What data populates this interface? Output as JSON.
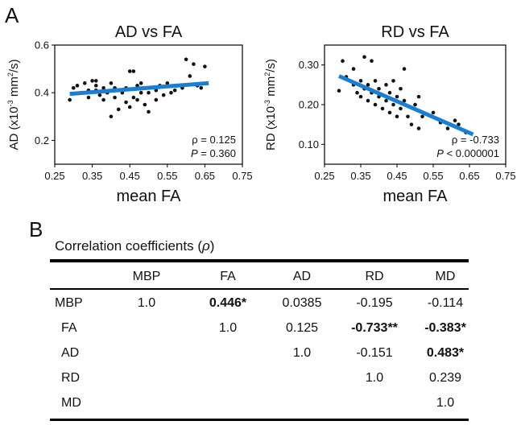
{
  "panel_a": "A",
  "panel_b": "B",
  "chart_data": [
    {
      "type": "scatter",
      "title": "AD vs FA",
      "xlabel": "mean FA",
      "ylabel_base": "AD (x10",
      "ylabel_sup1": "-3",
      "ylabel_mid": " mm",
      "ylabel_sup2": "2",
      "ylabel_end": "/s)",
      "xlim": [
        0.25,
        0.75
      ],
      "ylim": [
        0.1,
        0.6
      ],
      "xticks": [
        "0.25",
        "0.35",
        "0.45",
        "0.55",
        "0.65",
        "0.75"
      ],
      "xtick_values": [
        0.25,
        0.35,
        0.45,
        0.55,
        0.65,
        0.75
      ],
      "yticks": [
        "0.2",
        "0.4",
        "0.6"
      ],
      "ytick_values": [
        0.2,
        0.4,
        0.6
      ],
      "stat_rho": "ρ = 0.125",
      "stat_p_label": "P",
      "stat_p_value": " = 0.360",
      "fit_line": {
        "x": [
          0.29,
          0.66
        ],
        "y": [
          0.395,
          0.44
        ]
      },
      "points": [
        [
          0.29,
          0.37
        ],
        [
          0.3,
          0.42
        ],
        [
          0.31,
          0.43
        ],
        [
          0.32,
          0.4
        ],
        [
          0.33,
          0.44
        ],
        [
          0.34,
          0.41
        ],
        [
          0.34,
          0.38
        ],
        [
          0.35,
          0.45
        ],
        [
          0.36,
          0.41
        ],
        [
          0.36,
          0.43
        ],
        [
          0.37,
          0.39
        ],
        [
          0.38,
          0.42
        ],
        [
          0.38,
          0.37
        ],
        [
          0.39,
          0.4
        ],
        [
          0.4,
          0.44
        ],
        [
          0.4,
          0.3
        ],
        [
          0.41,
          0.42
        ],
        [
          0.41,
          0.38
        ],
        [
          0.42,
          0.33
        ],
        [
          0.43,
          0.4
        ],
        [
          0.44,
          0.36
        ],
        [
          0.44,
          0.42
        ],
        [
          0.45,
          0.49
        ],
        [
          0.45,
          0.34
        ],
        [
          0.46,
          0.49
        ],
        [
          0.46,
          0.38
        ],
        [
          0.47,
          0.43
        ],
        [
          0.47,
          0.37
        ],
        [
          0.48,
          0.4
        ],
        [
          0.48,
          0.44
        ],
        [
          0.49,
          0.35
        ],
        [
          0.5,
          0.4
        ],
        [
          0.5,
          0.32
        ],
        [
          0.52,
          0.41
        ],
        [
          0.53,
          0.43
        ],
        [
          0.54,
          0.39
        ],
        [
          0.55,
          0.44
        ],
        [
          0.56,
          0.4
        ],
        [
          0.57,
          0.41
        ],
        [
          0.59,
          0.42
        ],
        [
          0.6,
          0.54
        ],
        [
          0.61,
          0.47
        ],
        [
          0.62,
          0.52
        ],
        [
          0.63,
          0.43
        ],
        [
          0.64,
          0.42
        ],
        [
          0.65,
          0.51
        ],
        [
          0.36,
          0.45
        ],
        [
          0.52,
          0.37
        ]
      ]
    },
    {
      "type": "scatter",
      "title": "RD vs FA",
      "xlabel": "mean FA",
      "ylabel_base": "RD (x10",
      "ylabel_sup1": "-3",
      "ylabel_mid": " mm",
      "ylabel_sup2": "2",
      "ylabel_end": "/s)",
      "xlim": [
        0.25,
        0.75
      ],
      "ylim": [
        0.05,
        0.35
      ],
      "xticks": [
        "0.25",
        "0.35",
        "0.45",
        "0.55",
        "0.65",
        "0.75"
      ],
      "xtick_values": [
        0.25,
        0.35,
        0.45,
        0.55,
        0.65,
        0.75
      ],
      "yticks": [
        "0.10",
        "0.20",
        "0.30"
      ],
      "ytick_values": [
        0.1,
        0.2,
        0.3
      ],
      "stat_rho": "ρ = -0.733",
      "stat_p_label": "P",
      "stat_p_value": " < 0.000001",
      "fit_line": {
        "x": [
          0.29,
          0.66
        ],
        "y": [
          0.272,
          0.125
        ]
      },
      "points": [
        [
          0.29,
          0.235
        ],
        [
          0.3,
          0.31
        ],
        [
          0.31,
          0.27
        ],
        [
          0.32,
          0.26
        ],
        [
          0.33,
          0.29
        ],
        [
          0.33,
          0.25
        ],
        [
          0.34,
          0.23
        ],
        [
          0.35,
          0.26
        ],
        [
          0.35,
          0.22
        ],
        [
          0.36,
          0.32
        ],
        [
          0.36,
          0.24
        ],
        [
          0.37,
          0.25
        ],
        [
          0.37,
          0.21
        ],
        [
          0.38,
          0.31
        ],
        [
          0.38,
          0.23
        ],
        [
          0.39,
          0.26
        ],
        [
          0.39,
          0.2
        ],
        [
          0.4,
          0.24
        ],
        [
          0.4,
          0.22
        ],
        [
          0.41,
          0.19
        ],
        [
          0.42,
          0.25
        ],
        [
          0.42,
          0.21
        ],
        [
          0.43,
          0.23
        ],
        [
          0.43,
          0.18
        ],
        [
          0.44,
          0.2
        ],
        [
          0.44,
          0.26
        ],
        [
          0.45,
          0.22
        ],
        [
          0.45,
          0.17
        ],
        [
          0.46,
          0.19
        ],
        [
          0.47,
          0.29
        ],
        [
          0.47,
          0.21
        ],
        [
          0.48,
          0.17
        ],
        [
          0.49,
          0.15
        ],
        [
          0.5,
          0.2
        ],
        [
          0.51,
          0.22
        ],
        [
          0.51,
          0.14
        ],
        [
          0.52,
          0.17
        ],
        [
          0.55,
          0.18
        ],
        [
          0.57,
          0.155
        ],
        [
          0.59,
          0.14
        ],
        [
          0.61,
          0.16
        ],
        [
          0.62,
          0.15
        ],
        [
          0.64,
          0.13
        ],
        [
          0.46,
          0.24
        ]
      ]
    }
  ],
  "table": {
    "caption_prefix": "Correlation coefficients (",
    "caption_symbol": "ρ",
    "caption_suffix": ")",
    "headers": [
      "MBP",
      "FA",
      "AD",
      "RD",
      "MD"
    ],
    "rows": [
      {
        "label": "MBP",
        "cells": [
          {
            "v": "1.0",
            "b": false
          },
          {
            "v": "0.446*",
            "b": true
          },
          {
            "v": "0.0385",
            "b": false
          },
          {
            "v": "-0.195",
            "b": false
          },
          {
            "v": "-0.114",
            "b": false
          }
        ]
      },
      {
        "label": "FA",
        "cells": [
          {
            "v": "",
            "b": false
          },
          {
            "v": "1.0",
            "b": false
          },
          {
            "v": "0.125",
            "b": false
          },
          {
            "v": "-0.733**",
            "b": true
          },
          {
            "v": "-0.383*",
            "b": true
          }
        ]
      },
      {
        "label": "AD",
        "cells": [
          {
            "v": "",
            "b": false
          },
          {
            "v": "",
            "b": false
          },
          {
            "v": "1.0",
            "b": false
          },
          {
            "v": "-0.151",
            "b": false
          },
          {
            "v": "0.483*",
            "b": true
          }
        ]
      },
      {
        "label": "RD",
        "cells": [
          {
            "v": "",
            "b": false
          },
          {
            "v": "",
            "b": false
          },
          {
            "v": "",
            "b": false
          },
          {
            "v": "1.0",
            "b": false
          },
          {
            "v": "0.239",
            "b": false
          }
        ]
      },
      {
        "label": "MD",
        "cells": [
          {
            "v": "",
            "b": false
          },
          {
            "v": "",
            "b": false
          },
          {
            "v": "",
            "b": false
          },
          {
            "v": "",
            "b": false
          },
          {
            "v": "1.0",
            "b": false
          }
        ]
      }
    ]
  },
  "colors": {
    "fit_line": "#1a7fd0",
    "points": "#111111",
    "axes": "#000000"
  }
}
